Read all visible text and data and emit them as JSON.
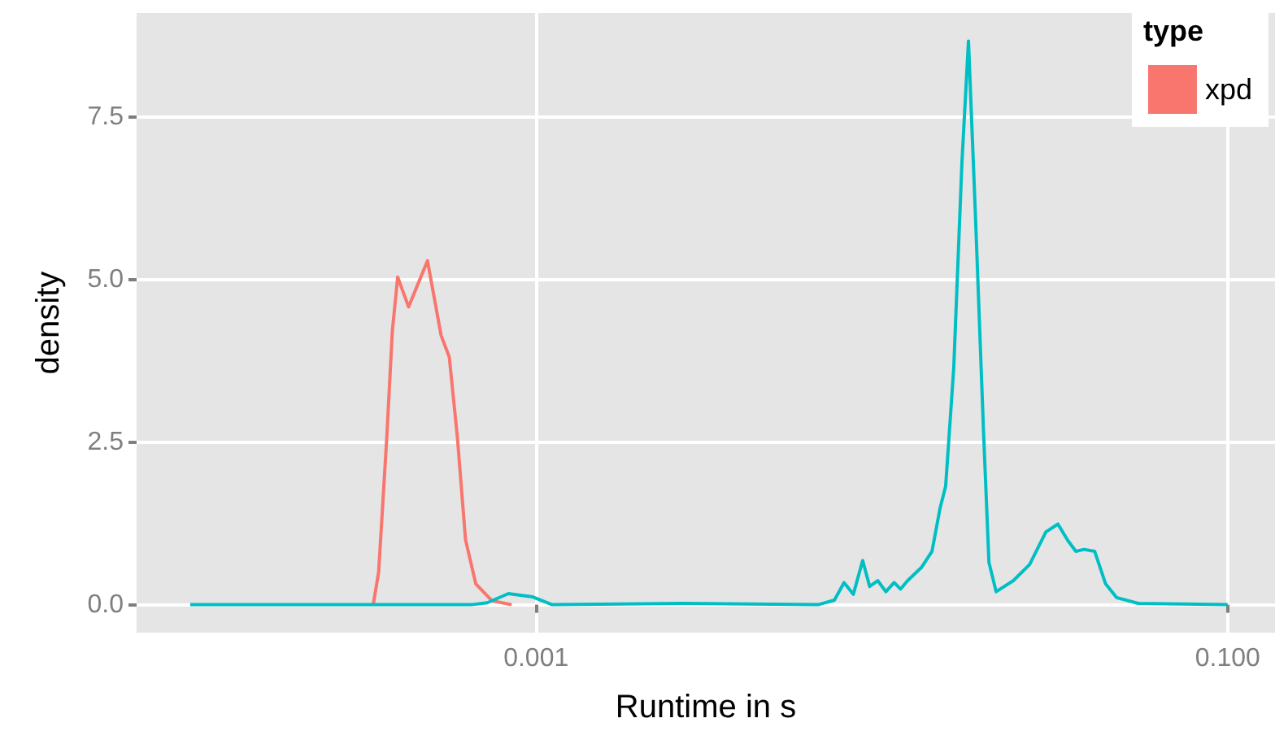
{
  "chart_data": {
    "type": "line",
    "xlabel": "Runtime in s",
    "ylabel": "density",
    "legend_title": "type",
    "legend": "top right",
    "grid": true,
    "log": "x",
    "marker": "none",
    "line_style": "solid",
    "xlim": [
      7e-05,
      0.137
    ],
    "xticks": [
      0.001,
      {
        "value": 0.1,
        "label": "0.100"
      }
    ],
    "ylim": [
      -0.43,
      9.1
    ],
    "yticks": [
      {
        "value": 0,
        "label": "0.0"
      },
      2.5,
      {
        "value": 5,
        "label": "5.0"
      },
      7.5
    ],
    "series": [
      {
        "name": "xpd",
        "color": "#f8766d",
        "x": [
          0.0003383,
          0.0003507,
          0.0003702,
          0.0003841,
          0.0003981,
          0.000428,
          0.0004855,
          0.0005317,
          0.0005613,
          0.0005925,
          0.0006254,
          0.0006697,
          0.0007464,
          0.00085
        ],
        "values": [
          0,
          0.5,
          2.57,
          4.2,
          5.04,
          4.58,
          5.29,
          4.14,
          3.81,
          2.57,
          1.0,
          0.32,
          0.06,
          0
        ]
      },
      {
        "color": "#00bfc4",
        "x": [
          0.0001,
          0.0006483,
          0.0007225,
          0.0008318,
          0.0009786,
          0.001114,
          0.002652,
          0.006537,
          0.007289,
          0.007774,
          0.00827,
          0.0088,
          0.00922,
          0.00973,
          0.01027,
          0.01085,
          0.01132,
          0.01187,
          0.013,
          0.01396,
          0.01474,
          0.01529,
          0.01614,
          0.01704,
          0.0178,
          0.01865,
          0.01968,
          0.0204,
          0.0214,
          0.024,
          0.02675,
          0.02981,
          0.03229,
          0.03447,
          0.03638,
          0.03841,
          0.04125,
          0.04436,
          0.04771,
          0.05511,
          0.1
        ],
        "values": [
          0,
          0,
          0.03,
          0.17,
          0.12,
          0,
          0.02,
          0,
          0.07,
          0.34,
          0.16,
          0.68,
          0.28,
          0.37,
          0.2,
          0.34,
          0.24,
          0.37,
          0.57,
          0.82,
          1.49,
          1.82,
          3.65,
          6.8,
          8.67,
          5.97,
          2.65,
          0.65,
          0.2,
          0.37,
          0.62,
          1.12,
          1.24,
          0.99,
          0.82,
          0.85,
          0.82,
          0.32,
          0.11,
          0.02,
          0
        ]
      }
    ]
  }
}
